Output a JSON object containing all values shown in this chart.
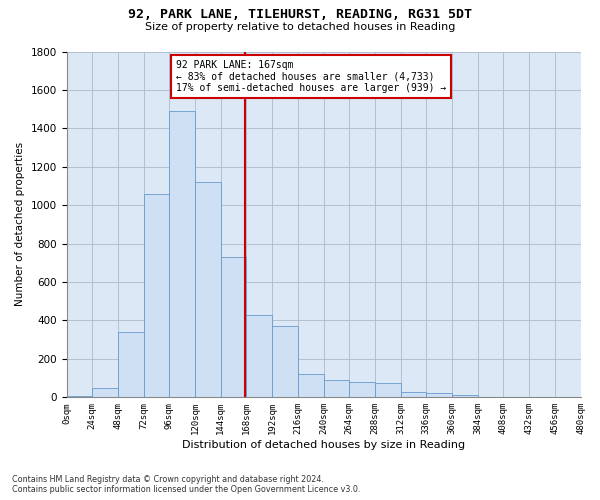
{
  "title_line1": "92, PARK LANE, TILEHURST, READING, RG31 5DT",
  "title_line2": "Size of property relative to detached houses in Reading",
  "xlabel": "Distribution of detached houses by size in Reading",
  "ylabel": "Number of detached properties",
  "footnote": "Contains HM Land Registry data © Crown copyright and database right 2024.\nContains public sector information licensed under the Open Government Licence v3.0.",
  "annotation_line1": "92 PARK LANE: 167sqm",
  "annotation_line2": "← 83% of detached houses are smaller (4,733)",
  "annotation_line3": "17% of semi-detached houses are larger (939) →",
  "property_size": 167,
  "bin_width": 24,
  "bins_start": 0,
  "bar_values": [
    5,
    50,
    340,
    1060,
    1490,
    1120,
    730,
    430,
    370,
    120,
    90,
    80,
    75,
    30,
    25,
    10,
    2,
    0,
    0,
    0
  ],
  "bar_color": "#cfe0f5",
  "bar_edge_color": "#6699cc",
  "vline_color": "#cc0000",
  "vline_x": 167,
  "annotation_box_color": "#ffffff",
  "annotation_box_edge": "#cc0000",
  "grid_color": "#aabbcc",
  "background_color": "#dce8f5",
  "ylim": [
    0,
    1800
  ],
  "xlim": [
    0,
    480
  ],
  "yticks": [
    0,
    200,
    400,
    600,
    800,
    1000,
    1200,
    1400,
    1600,
    1800
  ]
}
